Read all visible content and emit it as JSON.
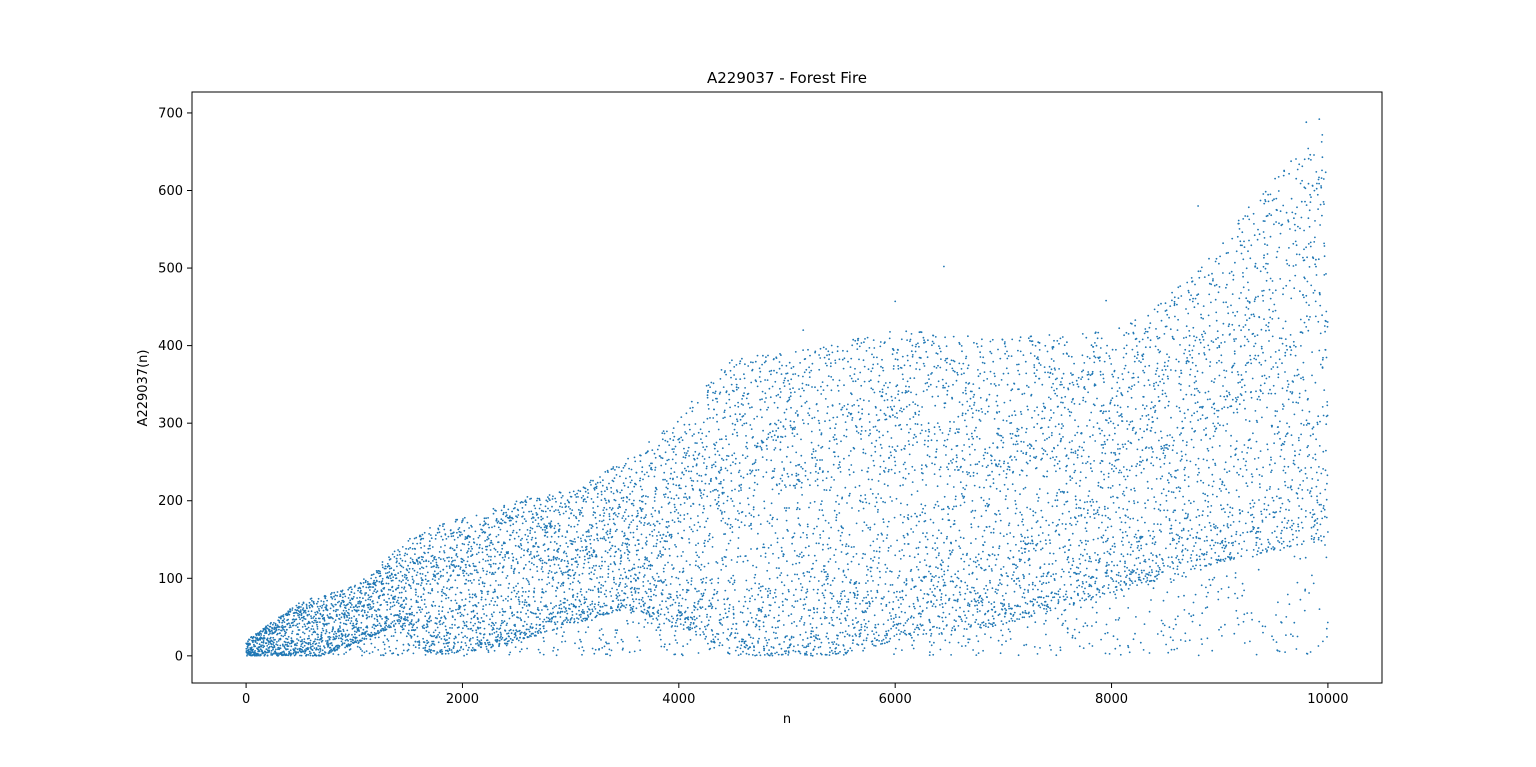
{
  "chart_data": {
    "type": "scatter",
    "title": "A229037 - Forest Fire",
    "xlabel": "n",
    "ylabel": "A229037(n)",
    "xlim": [
      -500,
      10500
    ],
    "ylim": [
      -35,
      727
    ],
    "x_ticks": [
      0,
      2000,
      4000,
      6000,
      8000,
      10000
    ],
    "y_ticks": [
      0,
      100,
      200,
      300,
      400,
      500,
      600,
      700
    ],
    "x_tick_labels": [
      "0",
      "2000",
      "4000",
      "6000",
      "8000",
      "10000"
    ],
    "y_tick_labels": [
      "0",
      "100",
      "200",
      "300",
      "400",
      "500",
      "600",
      "700"
    ],
    "grid": false,
    "legend": "none",
    "n_points": 10000,
    "marker_color": "#1f77b4",
    "series": [
      {
        "points": [
          [
            6450,
            502
          ],
          [
            9920,
            692
          ],
          [
            9800,
            688
          ],
          [
            8800,
            580
          ],
          [
            6000,
            457
          ],
          [
            5150,
            420
          ],
          [
            9840,
            5
          ],
          [
            9400,
            30
          ],
          [
            9990,
            35
          ],
          [
            7950,
            458
          ],
          [
            6950,
            395
          ],
          [
            4900,
            385
          ],
          [
            3500,
            245
          ],
          [
            2600,
            205
          ],
          [
            1700,
            165
          ]
        ]
      }
    ]
  }
}
